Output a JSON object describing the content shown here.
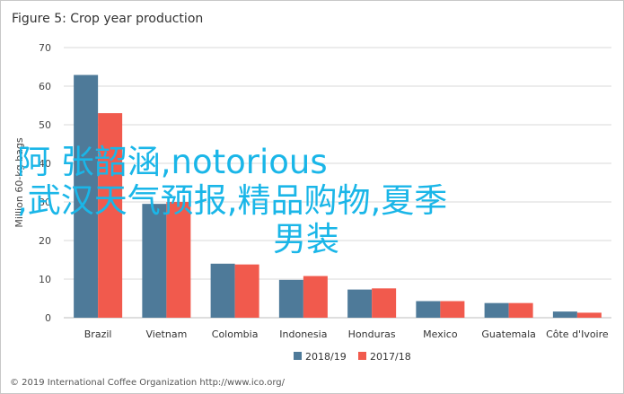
{
  "chart_data": {
    "type": "bar",
    "title": "Figure 5: Crop year production",
    "ylabel": "Million 60-kg bags",
    "xlabel": "",
    "ylim": [
      0,
      70
    ],
    "yticks": [
      0,
      10,
      20,
      30,
      40,
      50,
      60,
      70
    ],
    "grid": true,
    "legend_position": "bottom",
    "categories": [
      "Brazil",
      "Vietnam",
      "Colombia",
      "Indonesia",
      "Honduras",
      "Mexico",
      "Guatemala",
      "Côte d'Ivoire"
    ],
    "series": [
      {
        "name": "2018/19",
        "color": "#4e7a99",
        "values": [
          62.9,
          29.5,
          14.0,
          9.8,
          7.3,
          4.3,
          3.8,
          1.6
        ]
      },
      {
        "name": "2017/18",
        "color": "#f15a4d",
        "values": [
          53.0,
          30.0,
          13.8,
          10.8,
          7.6,
          4.3,
          3.8,
          1.3
        ]
      }
    ],
    "footer": "© 2019 International Coffee Organization http://www.ico.org/"
  },
  "overlay": {
    "line1": "阿 张韶涵,notorious",
    "line2": ",武汉天气预报,精品购物,夏季",
    "line3": "男装",
    "color": "#1ab6e8"
  }
}
